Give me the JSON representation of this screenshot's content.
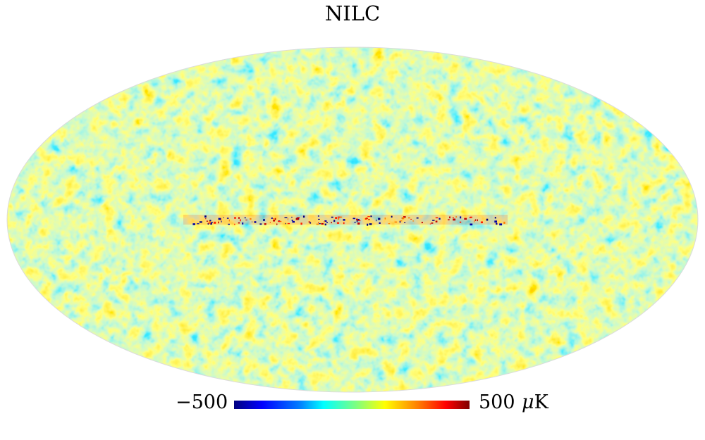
{
  "title": "NILC",
  "colorbar": {
    "min_label": "−500",
    "max_label": "500",
    "unit_symbol": "μ",
    "unit_letter": "K",
    "colors": [
      "#00007f",
      "#0000ff",
      "#007fff",
      "#00ffff",
      "#7fff7f",
      "#ffff00",
      "#ff7f00",
      "#ff0000",
      "#7f0000"
    ]
  },
  "map": {
    "projection": "mollweide",
    "background": "#ffffff"
  }
}
